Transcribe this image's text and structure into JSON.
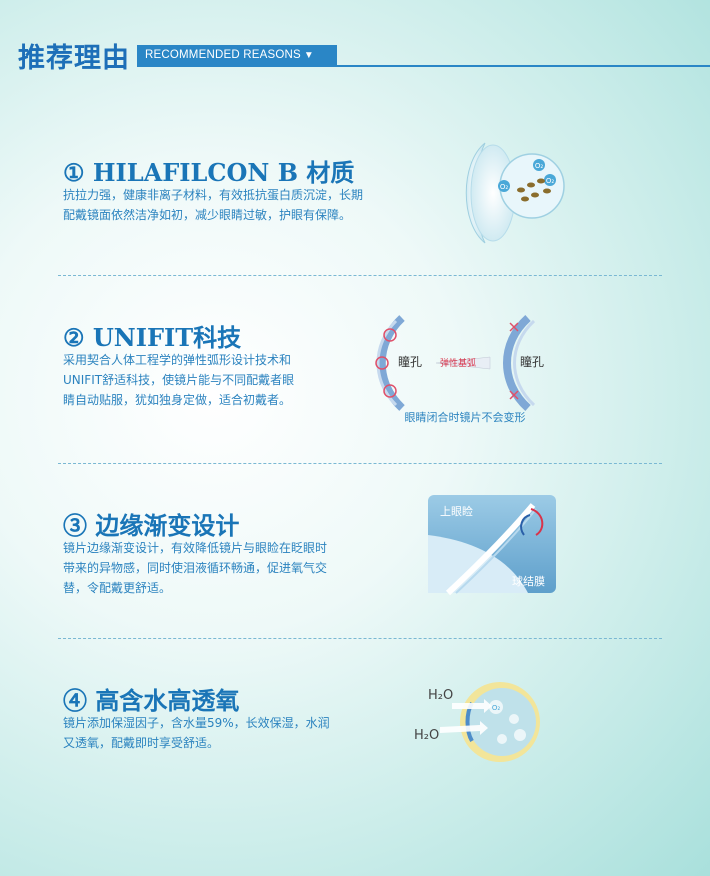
{
  "header": {
    "title": "推荐理由",
    "tag": "RECOMMENDED REASONS",
    "tag_arrow": "▼"
  },
  "sections": [
    {
      "title": "① HILAFILCON B 材质",
      "desc_lines": [
        "抗拉力强，健康非离子材料，有效抵抗蛋白质沉淀，长期",
        "配戴镜面依然洁净如初，减少眼睛过敏，护眼有保障。"
      ],
      "icon": "lens-molecule-icon",
      "labels": {
        "o2a": "O₂",
        "o2b": "O₂",
        "o2c": "O₂"
      }
    },
    {
      "title": "② UNIFIT科技",
      "desc_lines": [
        "采用契合人体工程学的弹性弧形设计技术和",
        "UNIFIT舒适科技，使镜片能与不同配戴者眼",
        "睛自动贴服，犹如独身定做，适合初戴者。"
      ],
      "icon": "eyelid-diagram-icon",
      "labels": {
        "pupil_left": "瞳孔",
        "pupil_right": "瞳孔",
        "arrow": "弹性基弧",
        "caption": "眼睛闭合时镜片不会变形"
      }
    },
    {
      "title": "③ 边缘渐变设计",
      "desc_lines": [
        "镜片边缘渐变设计，有效降低镜片与眼睑在眨眼时",
        "带来的异物感，同时使泪液循环畅通，促进氧气交",
        "替，令配戴更舒适。"
      ],
      "icon": "lens-edge-icon",
      "labels": {
        "upper": "上眼睑",
        "lower": "球结膜"
      }
    },
    {
      "title": "④ 高含水高透氧",
      "desc_lines": [
        "镜片添加保湿因子，含水量59%，长效保湿，水润",
        "又透氧，配戴即时享受舒适。"
      ],
      "icon": "water-oxygen-icon",
      "labels": {
        "h2o_top": "H₂O",
        "h2o_bottom": "H₂O",
        "o2": "O₂"
      }
    }
  ],
  "colors": {
    "accent": "#1a75b7",
    "text": "#2b83bf",
    "tag_bg": "#2a86c6"
  }
}
